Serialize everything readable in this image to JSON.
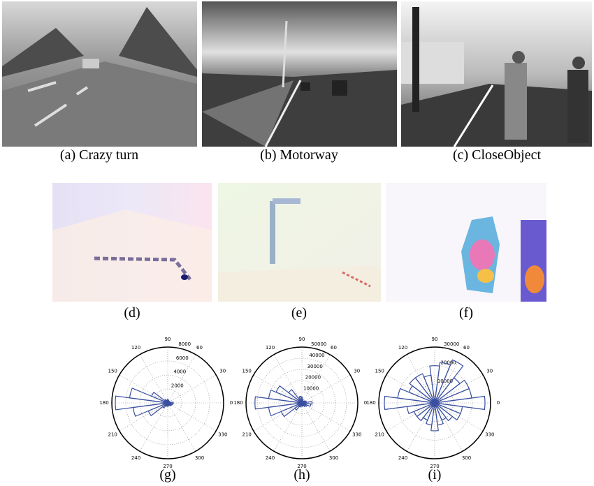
{
  "figure": {
    "panels": [
      {
        "caption": "(a) Crazy turn"
      },
      {
        "caption": "(b) Motorway"
      },
      {
        "caption": "(c) CloseObject"
      },
      {
        "caption": "(d)"
      },
      {
        "caption": "(e)"
      },
      {
        "caption": "(f)"
      }
    ]
  },
  "chart_data": [
    {
      "type": "polar-bar",
      "caption": "(g)",
      "color": "#3a4fa0",
      "grid": true,
      "theta": [
        0,
        15,
        30,
        45,
        60,
        75,
        90,
        105,
        120,
        135,
        150,
        165,
        180,
        195,
        210,
        225,
        240,
        255,
        270,
        285,
        300,
        315,
        330,
        345
      ],
      "values": [
        800,
        400,
        300,
        300,
        300,
        400,
        500,
        400,
        400,
        600,
        2500,
        5500,
        7500,
        5000,
        3000,
        900,
        500,
        400,
        500,
        400,
        400,
        500,
        600,
        700
      ],
      "rlim": [
        0,
        8000
      ],
      "rticks": [
        2000,
        4000,
        6000,
        8000
      ],
      "thetaticks": [
        0,
        30,
        60,
        90,
        120,
        150,
        180,
        210,
        240,
        270,
        300,
        330
      ]
    },
    {
      "type": "polar-bar",
      "caption": "(h)",
      "color": "#3a4fa0",
      "grid": true,
      "theta": [
        0,
        15,
        30,
        45,
        60,
        75,
        90,
        105,
        120,
        135,
        150,
        165,
        180,
        195,
        210,
        225,
        240,
        255,
        270,
        285,
        300,
        315,
        330,
        345
      ],
      "values": [
        9000,
        4000,
        3000,
        2000,
        2000,
        3000,
        5000,
        6000,
        5000,
        15000,
        25000,
        30000,
        42000,
        30000,
        20000,
        8000,
        4000,
        3000,
        3000,
        3000,
        3000,
        4000,
        5000,
        8000
      ],
      "rlim": [
        0,
        50000
      ],
      "rticks": [
        10000,
        20000,
        30000,
        40000,
        50000
      ],
      "thetaticks": [
        0,
        30,
        60,
        90,
        120,
        150,
        180,
        210,
        240,
        270,
        300,
        330
      ]
    },
    {
      "type": "polar-bar",
      "caption": "(i)",
      "color": "#3a4fa0",
      "grid": true,
      "theta": [
        0,
        15,
        30,
        45,
        60,
        75,
        90,
        105,
        120,
        135,
        150,
        165,
        180,
        195,
        210,
        225,
        240,
        255,
        270,
        285,
        300,
        315,
        330,
        345
      ],
      "values": [
        27000,
        20000,
        20000,
        17000,
        25000,
        22000,
        20000,
        15000,
        17000,
        17000,
        15000,
        20000,
        27000,
        15000,
        12000,
        12000,
        10000,
        12000,
        15000,
        12000,
        10000,
        12000,
        15000,
        15000
      ],
      "rlim": [
        0,
        30000
      ],
      "rticks": [
        10000,
        20000,
        30000
      ],
      "thetaticks": [
        0,
        30,
        60,
        90,
        120,
        150,
        180,
        210,
        240,
        270,
        300,
        330
      ]
    }
  ]
}
